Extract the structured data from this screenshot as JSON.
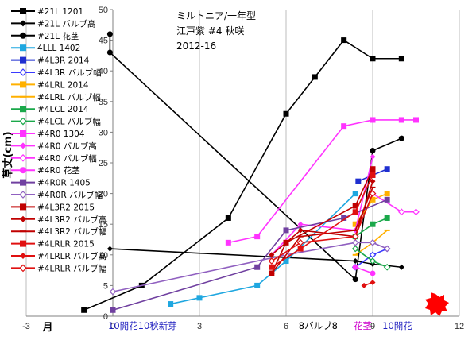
{
  "chart_data": {
    "type": "line",
    "title_lines": [
      "ミルトニア/一年型",
      "江戸紫  #4 秋咲",
      "2012-16"
    ],
    "ylabel": "草丈(cm)",
    "xlabel": "月",
    "xlim": [
      -3,
      12
    ],
    "ylim": [
      0,
      50
    ],
    "xticks": [
      -3,
      0,
      3,
      6,
      9,
      12
    ],
    "yticks": [
      0,
      5,
      10,
      15,
      20,
      25,
      30,
      35,
      40,
      45,
      50
    ],
    "grid_x": true,
    "grid_y": false,
    "legend_position": "left",
    "annotations": [
      {
        "text": "10開花10秋新芽",
        "x": 0,
        "color": "#1f1fbf"
      },
      {
        "text": "8バルブ8",
        "x": 6.6,
        "color": "#000000"
      },
      {
        "text": "花茎",
        "x": 8.5,
        "color": "#cc00cc"
      },
      {
        "text": "10開花",
        "x": 9.5,
        "color": "#1f1fbf"
      }
    ],
    "series": [
      {
        "name": "#21L 1201",
        "color": "#000000",
        "marker": "square",
        "x": [
          -1,
          1,
          4,
          6,
          7,
          8,
          9,
          10
        ],
        "y": [
          1,
          5,
          16,
          33,
          39,
          45,
          42,
          42
        ]
      },
      {
        "name": "#21L バルブ高",
        "color": "#000000",
        "marker": "diamond",
        "x": [
          -0.1,
          8.4,
          9,
          10
        ],
        "y": [
          11,
          9,
          8.5,
          8
        ]
      },
      {
        "name": "#21L 花茎",
        "color": "#000000",
        "marker": "circle",
        "x": [
          -0.1,
          -0.1,
          8.4,
          9,
          10
        ],
        "y": [
          46,
          43,
          6,
          27,
          29
        ]
      },
      {
        "name": "4LLL 1402",
        "color": "#1fa7e0",
        "marker": "square",
        "x": [
          2,
          3,
          5,
          6,
          8.4
        ],
        "y": [
          2,
          3,
          5,
          9,
          20
        ]
      },
      {
        "name": "#4L3R 2014",
        "color": "#1f2fd0",
        "marker": "square",
        "x": [
          8.5,
          9,
          9.5
        ],
        "y": [
          22,
          23,
          24
        ]
      },
      {
        "name": "#4L3R バルブ幅",
        "color": "#3a3aff",
        "marker": "open-diamond",
        "x": [
          8.4,
          9,
          9.5
        ],
        "y": [
          8,
          10,
          11
        ]
      },
      {
        "name": "#4LRL 2014",
        "color": "#ffb000",
        "marker": "square",
        "x": [
          8.4,
          9,
          9.5
        ],
        "y": [
          15,
          19,
          20
        ]
      },
      {
        "name": "#4LRL バルブ幅",
        "color": "#ffb000",
        "marker": "dash",
        "x": [
          8.4,
          9,
          9.5
        ],
        "y": [
          10,
          12,
          14
        ]
      },
      {
        "name": "#4LCL 2014",
        "color": "#1aa84a",
        "marker": "square",
        "x": [
          8.4,
          9,
          9.5
        ],
        "y": [
          13,
          15,
          16
        ]
      },
      {
        "name": "#4LCL バルブ幅",
        "color": "#1aa84a",
        "marker": "open-diamond",
        "x": [
          8.4,
          9,
          9.5
        ],
        "y": [
          11,
          9,
          8
        ]
      },
      {
        "name": "#4R0 1304",
        "color": "#ff33ff",
        "marker": "square",
        "x": [
          4,
          5,
          8,
          9,
          10,
          10.5
        ],
        "y": [
          12,
          13,
          31,
          32,
          32,
          32
        ]
      },
      {
        "name": "#4R0 バルブ高",
        "color": "#ff33ff",
        "marker": "diamond",
        "x": [
          5.5,
          6.5,
          8.4,
          9
        ],
        "y": [
          10,
          15,
          14,
          26
        ]
      },
      {
        "name": "#4R0 バルブ幅",
        "color": "#ff33ff",
        "marker": "open-diamond",
        "x": [
          9,
          10,
          10.5
        ],
        "y": [
          20,
          17,
          17
        ]
      },
      {
        "name": "#4R0 花茎",
        "color": "#ff33ff",
        "marker": "circle",
        "x": [
          8.4,
          9
        ],
        "y": [
          8,
          7
        ]
      },
      {
        "name": "#4R0R 1405",
        "color": "#7040a0",
        "marker": "square",
        "x": [
          0,
          5,
          6,
          8,
          9.5
        ],
        "y": [
          1,
          8,
          14,
          16,
          19
        ]
      },
      {
        "name": "#4R0R バルブ幅",
        "color": "#9060c0",
        "marker": "open-diamond",
        "x": [
          0,
          6,
          8.4,
          9,
          9.5
        ],
        "y": [
          4,
          10,
          12,
          12,
          11
        ]
      },
      {
        "name": "#4L3R2 2015",
        "color": "#c00000",
        "marker": "square",
        "x": [
          5.5,
          6,
          8.4,
          9
        ],
        "y": [
          7,
          12,
          18,
          24
        ]
      },
      {
        "name": "#4L3R2 バルブ高",
        "color": "#c00000",
        "marker": "diamond",
        "x": [
          5.5,
          6.5,
          8.4,
          9
        ],
        "y": [
          10,
          14,
          13,
          22
        ]
      },
      {
        "name": "#4L3R2 バルブ幅",
        "color": "#c00000",
        "marker": "dash",
        "x": [
          5.5,
          6.5,
          8.4,
          9
        ],
        "y": [
          7,
          13,
          14,
          21
        ]
      },
      {
        "name": "#4LRLR 2015",
        "color": "#e01010",
        "marker": "square",
        "x": [
          5.5,
          6.5,
          8.4,
          9
        ],
        "y": [
          8,
          11,
          17,
          23
        ]
      },
      {
        "name": "#4LRLR バルブ高",
        "color": "#e01010",
        "marker": "diamond",
        "x": [
          8.7,
          9
        ],
        "y": [
          5,
          5.5
        ]
      },
      {
        "name": "#4LRLR バルブ幅",
        "color": "#e01010",
        "marker": "open-diamond",
        "x": [
          5.5,
          6.5,
          8.4,
          9
        ],
        "y": [
          9,
          12,
          13,
          20
        ]
      }
    ]
  }
}
